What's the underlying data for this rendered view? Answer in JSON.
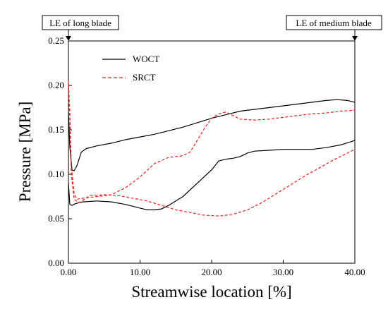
{
  "chart_data": {
    "type": "line",
    "xlabel": "Streamwise location [%]",
    "ylabel": "Pressure [MPa]",
    "xlim": [
      0,
      40
    ],
    "ylim": [
      0,
      0.25
    ],
    "xticks": [
      0,
      10,
      20,
      30,
      40
    ],
    "xtick_labels": [
      "0.00",
      "10.00",
      "20.00",
      "30.00",
      "40.00"
    ],
    "yticks": [
      0,
      0.05,
      0.1,
      0.15,
      0.2,
      0.25
    ],
    "ytick_labels": [
      "0.00",
      "0.05",
      "0.10",
      "0.15",
      "0.20",
      "0.25"
    ],
    "grid": false,
    "legend_position": "top-left",
    "annotations": [
      {
        "text": "LE of long blade",
        "x": 0
      },
      {
        "text": "LE of medium blade",
        "x": 40
      }
    ],
    "series": [
      {
        "name": "WOCT",
        "color": "#000000",
        "style": "solid",
        "lines": [
          {
            "x": [
              0,
              0.2,
              0.5,
              0.8,
              1.2,
              1.8,
              2.5,
              4,
              6,
              8,
              10,
              12,
              14,
              16,
              18,
              20,
              22,
              24,
              26,
              28,
              30,
              32,
              34,
              36,
              37.5,
              39,
              40
            ],
            "y": [
              0.17,
              0.13,
              0.105,
              0.104,
              0.11,
              0.125,
              0.129,
              0.132,
              0.135,
              0.139,
              0.142,
              0.145,
              0.149,
              0.153,
              0.158,
              0.163,
              0.167,
              0.171,
              0.173,
              0.175,
              0.177,
              0.179,
              0.181,
              0.183,
              0.184,
              0.183,
              0.181
            ]
          },
          {
            "x": [
              0,
              0.2,
              0.5,
              1,
              2,
              4,
              6,
              8,
              10,
              11,
              12,
              13,
              14,
              16,
              18,
              20,
              21,
              22,
              23,
              24,
              25,
              26,
              28,
              30,
              32,
              34,
              36,
              38,
              40
            ],
            "y": [
              0.09,
              0.066,
              0.065,
              0.067,
              0.069,
              0.07,
              0.069,
              0.066,
              0.062,
              0.06,
              0.06,
              0.061,
              0.065,
              0.075,
              0.09,
              0.105,
              0.115,
              0.117,
              0.118,
              0.12,
              0.124,
              0.126,
              0.127,
              0.128,
              0.128,
              0.128,
              0.13,
              0.133,
              0.138
            ]
          }
        ]
      },
      {
        "name": "SRCT",
        "color": "#e8211c",
        "style": "dashed",
        "lines": [
          {
            "x": [
              0,
              0.2,
              0.4,
              0.8,
              1.2,
              2,
              4,
              6,
              8,
              10,
              12,
              14,
              16,
              17,
              18,
              19,
              20,
              21,
              22,
              23,
              24,
              26,
              28,
              30,
              32,
              34,
              36,
              38,
              40
            ],
            "y": [
              0.205,
              0.17,
              0.11,
              0.078,
              0.072,
              0.073,
              0.075,
              0.077,
              0.085,
              0.097,
              0.112,
              0.119,
              0.121,
              0.125,
              0.138,
              0.152,
              0.163,
              0.168,
              0.17,
              0.166,
              0.162,
              0.161,
              0.162,
              0.164,
              0.166,
              0.168,
              0.169,
              0.171,
              0.172
            ]
          },
          {
            "x": [
              0,
              0.2,
              0.4,
              0.8,
              1.5,
              3,
              5,
              7,
              9,
              11,
              13,
              15,
              17,
              19,
              21,
              23,
              25,
              27,
              29,
              31,
              33,
              35,
              37,
              39,
              40
            ],
            "y": [
              0.2,
              0.16,
              0.1,
              0.072,
              0.068,
              0.076,
              0.077,
              0.076,
              0.073,
              0.07,
              0.065,
              0.06,
              0.057,
              0.054,
              0.053,
              0.055,
              0.06,
              0.068,
              0.078,
              0.088,
              0.098,
              0.107,
              0.116,
              0.124,
              0.128
            ]
          }
        ]
      }
    ]
  }
}
